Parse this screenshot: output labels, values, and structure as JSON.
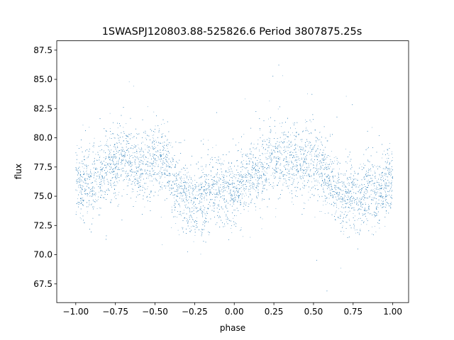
{
  "chart_data": {
    "type": "scatter",
    "title": "1SWASPJ120803.88-525826.6 Period 3807875.25s",
    "xlabel": "phase",
    "ylabel": "flux",
    "xlim": [
      -1.12,
      1.1
    ],
    "ylim": [
      65.9,
      88.3
    ],
    "xticks": [
      -1.0,
      -0.75,
      -0.5,
      -0.25,
      0.0,
      0.25,
      0.5,
      0.75,
      1.0
    ],
    "xtick_labels": [
      "−1.00",
      "−0.75",
      "−0.50",
      "−0.25",
      "0.00",
      "0.25",
      "0.50",
      "0.75",
      "1.00"
    ],
    "yticks": [
      67.5,
      70.0,
      72.5,
      75.0,
      77.5,
      80.0,
      82.5,
      85.0,
      87.5
    ],
    "ytick_labels": [
      "67.5",
      "70.0",
      "72.5",
      "75.0",
      "77.5",
      "80.0",
      "82.5",
      "85.0",
      "87.5"
    ],
    "grid": false,
    "legend": "none",
    "series": [
      {
        "marker_color": "#1f77b4",
        "phase": [
          -1.0,
          -0.95,
          -0.9,
          -0.85,
          -0.8,
          -0.75,
          -0.7,
          -0.65,
          -0.6,
          -0.55,
          -0.5,
          -0.45,
          -0.4,
          -0.35,
          -0.3,
          -0.25,
          -0.2,
          -0.15,
          -0.1,
          -0.05,
          0.0,
          0.05,
          0.1,
          0.15,
          0.2,
          0.25,
          0.3,
          0.35,
          0.4,
          0.45,
          0.5,
          0.55,
          0.6,
          0.65,
          0.7,
          0.75,
          0.8,
          0.85,
          0.9,
          0.95,
          1.0
        ],
        "flux_mean": [
          76.4,
          76.2,
          76.0,
          76.6,
          77.4,
          78.0,
          78.4,
          78.0,
          77.6,
          77.8,
          78.2,
          78.0,
          76.8,
          75.6,
          74.8,
          74.6,
          74.8,
          75.4,
          75.6,
          75.4,
          75.6,
          76.0,
          76.6,
          77.0,
          77.6,
          78.2,
          78.4,
          78.0,
          77.6,
          78.0,
          78.2,
          77.6,
          76.6,
          75.4,
          74.8,
          75.0,
          75.2,
          75.4,
          75.0,
          75.8,
          76.4
        ],
        "flux_spread": 1.5,
        "n_points": 9000
      }
    ]
  }
}
